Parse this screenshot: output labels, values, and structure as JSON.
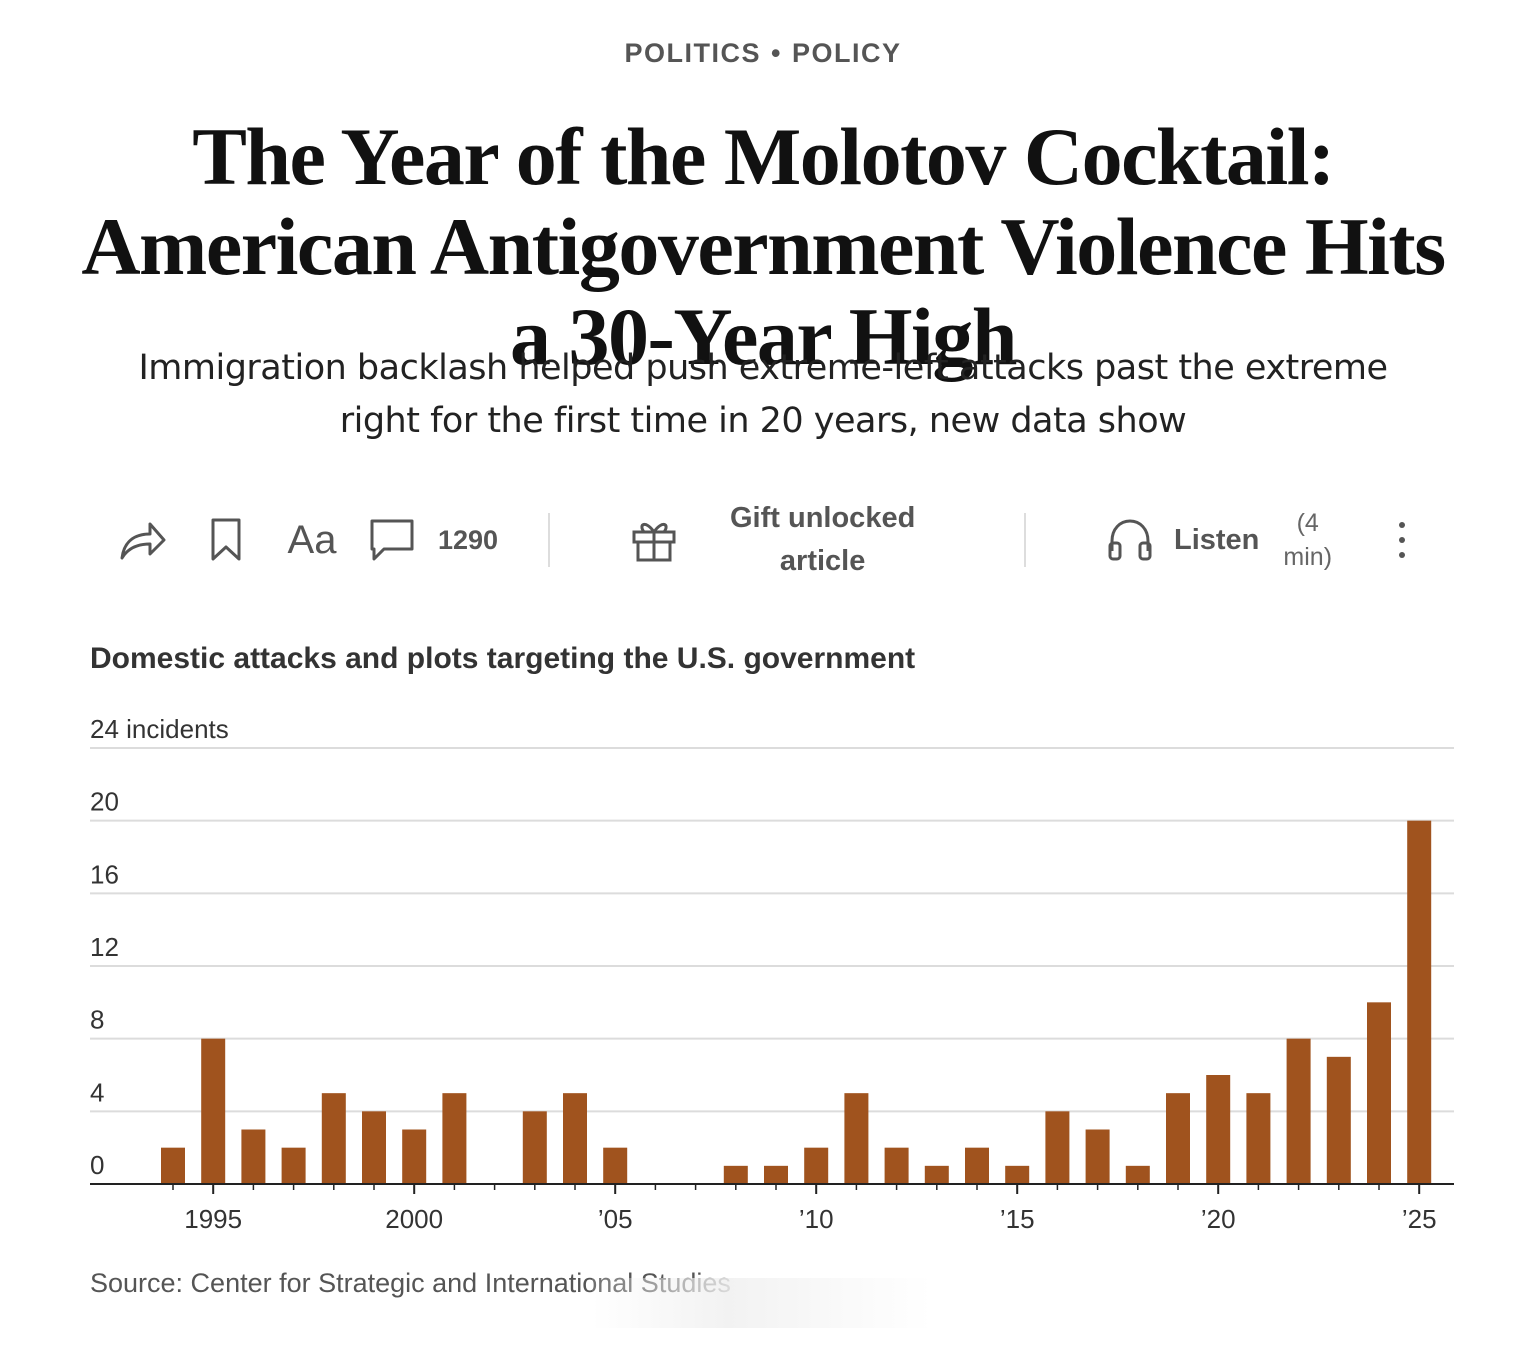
{
  "header": {
    "kicker_left": "POLITICS",
    "kicker_sep": "•",
    "kicker_right": "POLICY",
    "headline": "The Year of the Molotov Cocktail: American Antigovernment Violence Hits a 30-Year High",
    "dek": "Immigration backlash helped push extreme-left attacks past the extreme right for the first time in 20 years, new data show"
  },
  "toolbar": {
    "share_icon": "share-icon",
    "bookmark_icon": "bookmark-icon",
    "text_size_label": "Aa",
    "comment_icon": "comment-icon",
    "comment_count": "1290",
    "gift_icon": "gift-icon",
    "gift_label": "Gift unlocked article",
    "gift_line1": "Gift unlocked",
    "gift_line2": "article",
    "listen_icon": "headphones-icon",
    "listen_label": "Listen",
    "listen_dur_line1": "(4",
    "listen_dur_line2": "min)",
    "more_icon": "more-vertical-icon"
  },
  "chart_data": {
    "type": "bar",
    "title": "Domestic attacks and plots targeting the U.S. government",
    "ylabel_top": "24 incidents",
    "x": [
      1994,
      1995,
      1996,
      1997,
      1998,
      1999,
      2000,
      2001,
      2002,
      2003,
      2004,
      2005,
      2006,
      2007,
      2008,
      2009,
      2010,
      2011,
      2012,
      2013,
      2014,
      2015,
      2016,
      2017,
      2018,
      2019,
      2020,
      2021,
      2022,
      2023,
      2024,
      2025
    ],
    "values": [
      2,
      8,
      3,
      2,
      5,
      4,
      3,
      5,
      0,
      4,
      5,
      2,
      0,
      0,
      1,
      1,
      2,
      5,
      2,
      1,
      2,
      1,
      4,
      3,
      1,
      5,
      6,
      5,
      8,
      7,
      10,
      20
    ],
    "x_tick_labels": [
      {
        "year": 1995,
        "label": "1995"
      },
      {
        "year": 2000,
        "label": "2000"
      },
      {
        "year": 2005,
        "label": "’05"
      },
      {
        "year": 2010,
        "label": "’10"
      },
      {
        "year": 2015,
        "label": "’15"
      },
      {
        "year": 2020,
        "label": "’20"
      },
      {
        "year": 2025,
        "label": "’25"
      }
    ],
    "y_ticks": [
      0,
      4,
      8,
      12,
      16,
      20,
      24
    ],
    "y_tick_labels": [
      "0",
      "4",
      "8",
      "12",
      "16",
      "20",
      "24 incidents"
    ],
    "ylim": [
      0,
      24
    ],
    "grid": true,
    "bar_color": "#a0531e",
    "source": "Source: Center for Strategic and International Studies"
  }
}
